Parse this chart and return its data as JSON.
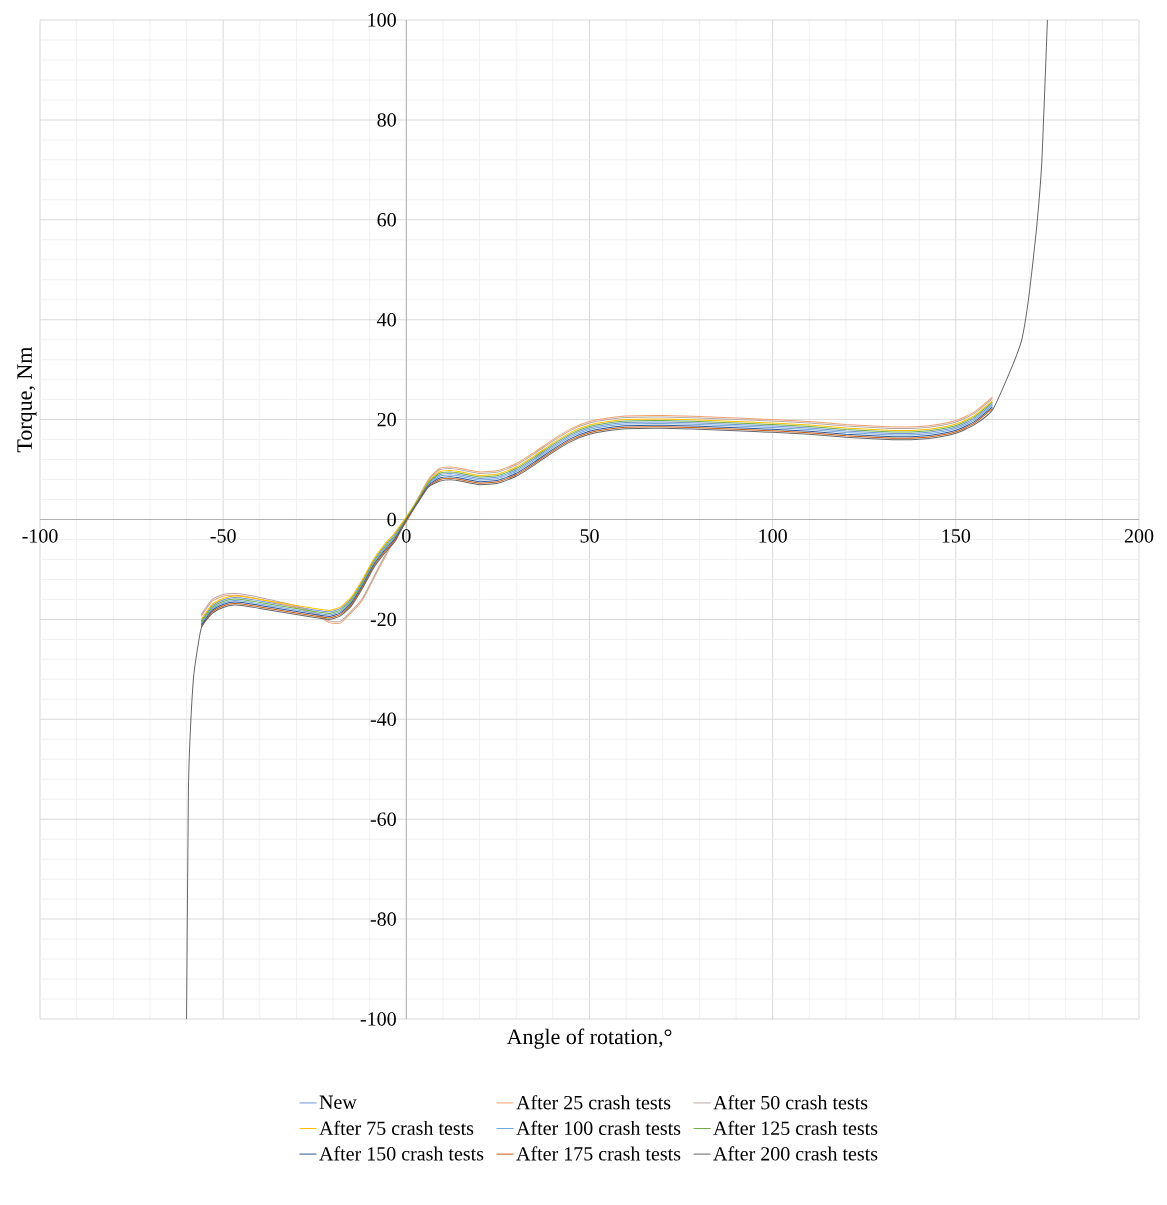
{
  "chart_data": {
    "type": "line",
    "xlabel": "Angle of rotation,°",
    "ylabel": "Torque, Nm",
    "xlim": [
      -100,
      200
    ],
    "ylim": [
      -100,
      100
    ],
    "xticks": [
      -100,
      -50,
      0,
      50,
      100,
      150,
      200
    ],
    "yticks": [
      -100,
      -80,
      -60,
      -40,
      -20,
      0,
      20,
      40,
      60,
      80,
      100
    ],
    "grid": true,
    "legend": "bottom",
    "x": [
      -60,
      -59.5,
      -59,
      -58,
      -56,
      -53,
      -50,
      -47,
      -44,
      -40,
      -35,
      -30,
      -25,
      -21,
      -18,
      -15,
      -12,
      -9,
      -6,
      -3,
      0,
      3,
      6,
      9,
      12,
      15,
      20,
      25,
      30,
      35,
      40,
      45,
      50,
      55,
      60,
      70,
      80,
      90,
      100,
      110,
      120,
      130,
      135,
      140,
      145,
      150,
      155,
      160,
      165,
      168,
      170,
      172,
      173.5,
      175
    ],
    "series": [
      {
        "name": "New",
        "color": "#7094d6",
        "values": [
          null,
          null,
          null,
          null,
          -20.3,
          -17.3,
          -16.1,
          -15.6,
          -15.8,
          -16.3,
          -16.9,
          -17.5,
          -18.1,
          -18.5,
          -17.8,
          -15.8,
          -12.3,
          -8.3,
          -5.3,
          -2.8,
          null,
          3.6,
          7.2,
          8.9,
          9.2,
          8.9,
          8.2,
          8.5,
          9.9,
          12.2,
          14.7,
          16.9,
          18.3,
          19,
          19.4,
          19.5,
          19.3,
          19,
          18.7,
          18.3,
          17.7,
          17.3,
          17.2,
          17.3,
          17.7,
          18.5,
          20.2,
          23.2,
          null,
          null,
          null,
          null,
          null,
          null
        ]
      },
      {
        "name": "After 25 crash tests",
        "color": "#f0a070",
        "values": [
          null,
          null,
          null,
          null,
          -19.35,
          -16.35,
          -15.35,
          -15.15,
          -15.35,
          -15.95,
          -16.75,
          -17.65,
          -18.95,
          -20.65,
          -20.75,
          -18.65,
          -16.15,
          -11.95,
          -7.75,
          -3.85,
          null,
          4,
          8,
          10.2,
          10.5,
          10.2,
          9.5,
          9.8,
          11.2,
          13.5,
          16,
          18.2,
          19.6,
          20.3,
          20.7,
          20.8,
          20.6,
          20.3,
          20,
          19.6,
          19,
          18.6,
          18.5,
          18.6,
          19,
          19.8,
          21.5,
          24.5,
          null,
          null,
          null,
          null,
          null,
          null
        ]
      },
      {
        "name": "After 50 crash tests",
        "color": "#b8a8a4",
        "values": [
          null,
          null,
          null,
          null,
          -19,
          -16,
          -15,
          -14.8,
          -15,
          -15.6,
          -16.4,
          -17.3,
          -18.6,
          -20.3,
          -20.4,
          -18.3,
          -15.8,
          -11.6,
          -7.4,
          -3.5,
          null,
          3.9,
          7.8,
          9.9,
          10.2,
          9.9,
          9.2,
          9.5,
          10.9,
          13.2,
          15.7,
          17.9,
          19.3,
          20,
          20.4,
          20.5,
          20.3,
          20,
          19.7,
          19.3,
          18.7,
          18.3,
          18.2,
          18.3,
          18.7,
          19.5,
          21.2,
          24.2,
          null,
          null,
          null,
          null,
          null,
          null
        ]
      },
      {
        "name": "After 75 crash tests",
        "color": "#ffc000",
        "values": [
          null,
          null,
          null,
          null,
          -20,
          -17,
          -15.8,
          -15.3,
          -15.5,
          -16,
          -16.6,
          -17.2,
          -17.8,
          -18.2,
          -17.5,
          -15.5,
          -12,
          -8,
          -5,
          -2.5,
          null,
          3.8,
          7.6,
          9.5,
          9.8,
          9.5,
          8.8,
          9.1,
          10.5,
          12.8,
          15.3,
          17.5,
          18.9,
          19.6,
          20,
          20.1,
          19.9,
          19.6,
          19.3,
          18.9,
          18.3,
          17.9,
          17.8,
          17.9,
          18.3,
          19.1,
          20.8,
          23.8,
          null,
          null,
          null,
          null,
          null,
          null
        ]
      },
      {
        "name": "After 100 crash tests",
        "color": "#6fa8dc",
        "values": [
          null,
          null,
          null,
          null,
          -20.9,
          -17.9,
          -16.7,
          -16.2,
          -16.4,
          -16.9,
          -17.5,
          -18.1,
          -18.7,
          -19.1,
          -18.4,
          -16.4,
          -12.9,
          -8.9,
          -5.9,
          -3.4,
          null,
          3.5,
          7,
          8.6,
          8.9,
          8.6,
          7.9,
          8.2,
          9.6,
          11.9,
          14.4,
          16.6,
          18,
          18.7,
          19.1,
          19.2,
          19,
          18.7,
          18.4,
          18,
          17.4,
          17,
          16.9,
          17,
          17.4,
          18.2,
          19.9,
          22.9,
          null,
          null,
          null,
          null,
          null,
          null
        ]
      },
      {
        "name": "After 125 crash tests",
        "color": "#70ad47",
        "values": [
          null,
          null,
          null,
          null,
          -20.6,
          -17.6,
          -16.4,
          -15.9,
          -16.1,
          -16.6,
          -17.2,
          -17.8,
          -18.4,
          -18.8,
          -18.1,
          -16.1,
          -12.6,
          -8.6,
          -5.6,
          -3.1,
          null,
          3.7,
          7.4,
          9.2,
          9.5,
          9.2,
          8.5,
          8.8,
          10.2,
          12.5,
          15,
          17.2,
          18.6,
          19.3,
          19.7,
          19.8,
          19.6,
          19.3,
          19,
          18.6,
          18,
          17.6,
          17.5,
          17.6,
          18,
          18.8,
          20.5,
          23.5,
          null,
          null,
          null,
          null,
          null,
          null
        ]
      },
      {
        "name": "After 150 crash tests",
        "color": "#2f5597",
        "values": [
          null,
          null,
          null,
          null,
          -21.2,
          -18.2,
          -17,
          -16.5,
          -16.7,
          -17.2,
          -17.8,
          -18.4,
          -19,
          -19.4,
          -18.7,
          -16.7,
          -13.2,
          -9.2,
          -6.2,
          -3.7,
          null,
          3.4,
          6.8,
          8.25,
          8.55,
          8.25,
          7.55,
          7.85,
          9.25,
          11.55,
          14.05,
          16.25,
          17.65,
          18.35,
          18.75,
          18.85,
          18.65,
          18.35,
          18.05,
          17.65,
          17.05,
          16.65,
          16.55,
          16.65,
          17.05,
          17.85,
          19.55,
          22.55,
          null,
          null,
          null,
          null,
          null,
          null
        ]
      },
      {
        "name": "After 175 crash tests",
        "color": "#c55a11",
        "values": [
          null,
          null,
          null,
          null,
          -21.5,
          -18.5,
          -17.3,
          -16.8,
          -17,
          -17.5,
          -18.1,
          -18.7,
          -19.3,
          -19.7,
          -19,
          -17,
          -13.5,
          -9.5,
          -6.5,
          -4,
          null,
          3.3,
          6.6,
          7.95,
          8.25,
          7.95,
          7.25,
          7.55,
          8.95,
          11.25,
          13.75,
          15.95,
          17.35,
          18.05,
          18.45,
          18.55,
          18.35,
          18.05,
          17.75,
          17.35,
          16.75,
          16.35,
          16.25,
          16.35,
          16.75,
          17.55,
          19.25,
          22.25,
          null,
          null,
          null,
          null,
          null,
          null
        ]
      },
      {
        "name": "After 200 crash tests",
        "color": "#666666",
        "values": [
          -100,
          -55,
          -43,
          -31,
          -21.8,
          -18.8,
          -17.6,
          -17.1,
          -17.3,
          -17.8,
          -18.4,
          -19,
          -19.6,
          -20,
          -19.3,
          -17.3,
          -13.8,
          -9.8,
          -6.8,
          -4.3,
          0,
          3.2,
          6.5,
          7.65,
          7.95,
          7.65,
          6.95,
          7.25,
          8.65,
          10.95,
          13.45,
          15.65,
          17.05,
          17.75,
          18.15,
          18.25,
          18.05,
          17.75,
          17.45,
          17.05,
          16.45,
          16.05,
          15.95,
          16.05,
          16.45,
          17.25,
          18.95,
          21.95,
          30,
          36,
          45,
          58,
          72,
          100
        ]
      }
    ]
  }
}
